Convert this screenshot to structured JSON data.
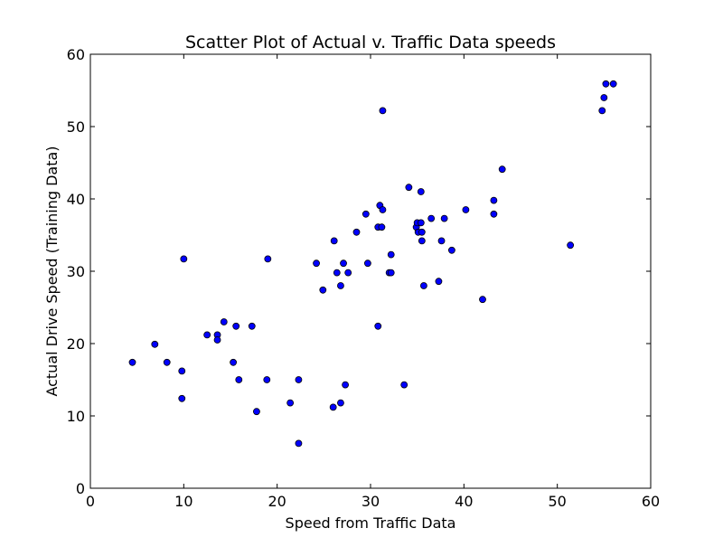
{
  "chart_data": {
    "type": "scatter",
    "title": "Scatter Plot of Actual v. Traffic Data speeds",
    "xlabel": "Speed from Traffic Data",
    "ylabel": "Actual Drive Speed (Training Data)",
    "xlim": [
      0,
      60
    ],
    "ylim": [
      0,
      60
    ],
    "xticks": [
      0,
      10,
      20,
      30,
      40,
      50,
      60
    ],
    "yticks": [
      0,
      10,
      20,
      30,
      40,
      50,
      60
    ],
    "grid": false,
    "marker_color": "#0000ff",
    "marker_edge": "#000000",
    "points": [
      [
        4.5,
        17.4
      ],
      [
        6.9,
        19.9
      ],
      [
        8.2,
        17.4
      ],
      [
        9.8,
        16.2
      ],
      [
        9.8,
        12.4
      ],
      [
        10.0,
        31.7
      ],
      [
        12.5,
        21.2
      ],
      [
        13.6,
        21.2
      ],
      [
        13.6,
        20.5
      ],
      [
        14.3,
        23.0
      ],
      [
        15.3,
        17.4
      ],
      [
        15.6,
        22.4
      ],
      [
        15.9,
        15.0
      ],
      [
        17.3,
        22.4
      ],
      [
        17.8,
        10.6
      ],
      [
        18.9,
        15.0
      ],
      [
        19.0,
        31.7
      ],
      [
        21.4,
        11.8
      ],
      [
        22.3,
        15.0
      ],
      [
        22.3,
        6.2
      ],
      [
        24.2,
        31.1
      ],
      [
        24.9,
        27.4
      ],
      [
        26.0,
        11.2
      ],
      [
        26.1,
        34.2
      ],
      [
        26.4,
        29.8
      ],
      [
        26.8,
        11.8
      ],
      [
        26.8,
        28.0
      ],
      [
        27.1,
        31.1
      ],
      [
        27.3,
        14.3
      ],
      [
        27.6,
        29.8
      ],
      [
        28.5,
        35.4
      ],
      [
        29.5,
        37.9
      ],
      [
        29.7,
        31.1
      ],
      [
        30.8,
        36.1
      ],
      [
        30.8,
        22.4
      ],
      [
        31.0,
        39.1
      ],
      [
        31.2,
        36.1
      ],
      [
        31.3,
        38.5
      ],
      [
        31.3,
        52.2
      ],
      [
        32.0,
        29.8
      ],
      [
        32.2,
        32.3
      ],
      [
        32.2,
        29.8
      ],
      [
        33.6,
        14.3
      ],
      [
        34.1,
        41.6
      ],
      [
        34.9,
        36.1
      ],
      [
        35.0,
        36.7
      ],
      [
        35.1,
        35.4
      ],
      [
        35.4,
        41.0
      ],
      [
        35.4,
        36.7
      ],
      [
        35.5,
        35.4
      ],
      [
        35.5,
        34.2
      ],
      [
        35.7,
        28.0
      ],
      [
        36.5,
        37.3
      ],
      [
        37.3,
        28.6
      ],
      [
        37.6,
        34.2
      ],
      [
        37.9,
        37.3
      ],
      [
        38.7,
        32.9
      ],
      [
        40.2,
        38.5
      ],
      [
        42.0,
        26.1
      ],
      [
        43.2,
        39.8
      ],
      [
        43.2,
        37.9
      ],
      [
        44.1,
        44.1
      ],
      [
        51.4,
        33.6
      ],
      [
        54.8,
        52.2
      ],
      [
        55.0,
        54.0
      ],
      [
        55.2,
        55.9
      ],
      [
        56.0,
        55.9
      ]
    ]
  }
}
